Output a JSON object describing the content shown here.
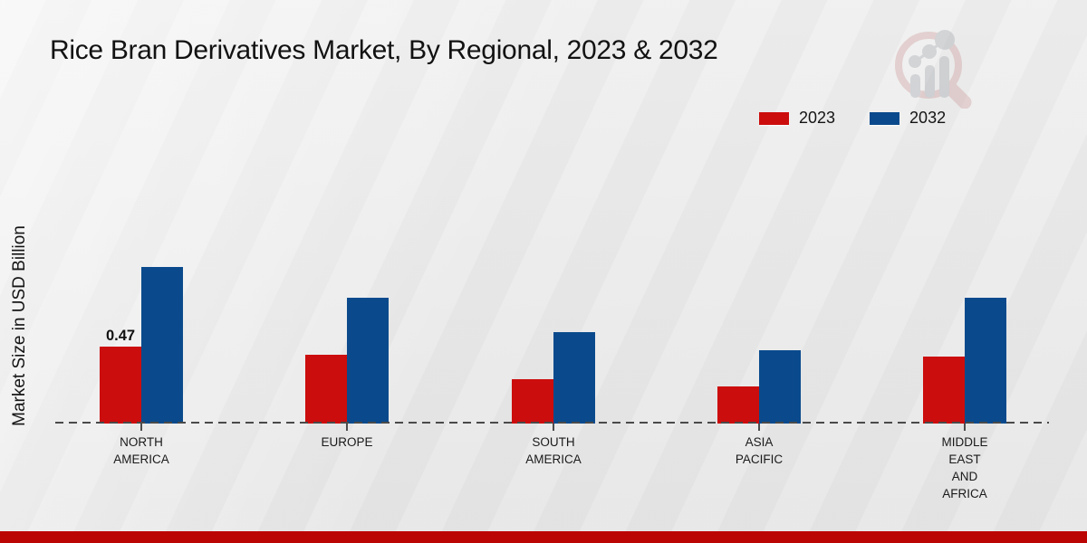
{
  "page": {
    "watermark_icon": "magnifier-bar-chart-logo",
    "footer_bar_color": "#bb0504",
    "background_color": "#eaeaea"
  },
  "chart_data": {
    "type": "bar",
    "title": "Rice Bran Derivatives Market, By Regional, 2023 & 2032",
    "xlabel": "",
    "ylabel": "Market Size in USD Billion",
    "categories": [
      "NORTH\nAMERICA",
      "EUROPE",
      "SOUTH\nAMERICA",
      "ASIA\nPACIFIC",
      "MIDDLE\nEAST\nAND\nAFRICA"
    ],
    "series": [
      {
        "name": "2023",
        "color": "#cc0d0d",
        "values": [
          0.47,
          0.42,
          0.27,
          0.23,
          0.41
        ]
      },
      {
        "name": "2032",
        "color": "#0a4a8c",
        "values": [
          0.96,
          0.77,
          0.56,
          0.45,
          0.77
        ]
      }
    ],
    "data_labels": [
      {
        "series": "2023",
        "category_index": 0,
        "text": "0.47"
      }
    ],
    "ylim": [
      0,
      1.0
    ],
    "grid": false,
    "legend_position": "top-right",
    "baseline_style": "dashed",
    "y_ticks_visible": false
  }
}
